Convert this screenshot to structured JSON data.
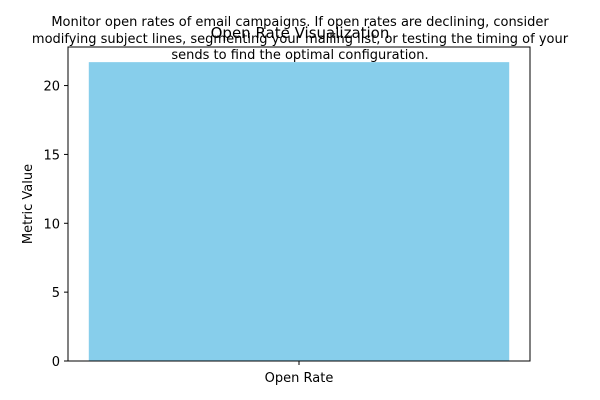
{
  "chart_data": {
    "type": "bar",
    "title": "Open Rate Visualization",
    "annotation": [
      "Monitor open rates of email campaigns. If open rates are declining, consider",
      "modifying subject lines, segmenting your mailing list, or testing the timing of your",
      "sends to find the optimal configuration."
    ],
    "categories": [
      "Open Rate"
    ],
    "values": [
      21.7
    ],
    "xlabel": "",
    "ylabel": "Metric Value",
    "ylim": [
      0,
      22.8
    ],
    "yticks": [
      0,
      5,
      10,
      15,
      20
    ],
    "bar_color": "#87CEEB",
    "grid": false,
    "legend": "none"
  }
}
